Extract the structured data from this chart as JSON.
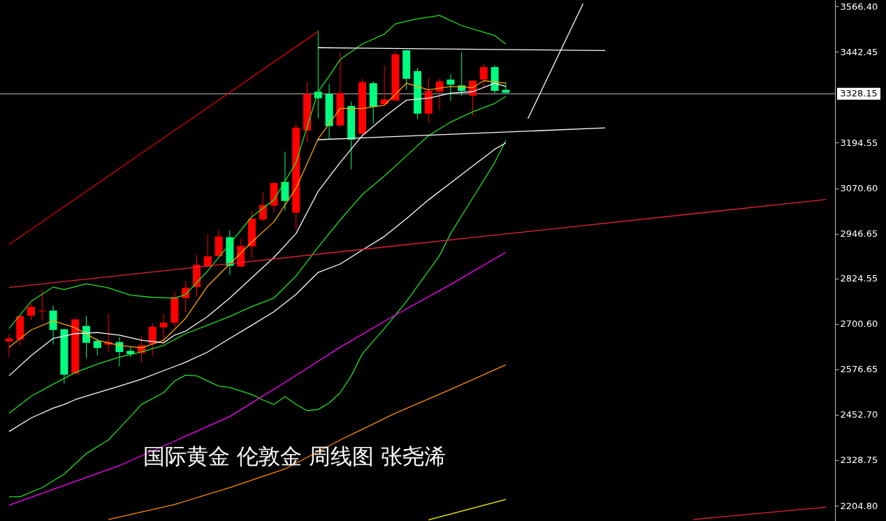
{
  "chart_data": {
    "type": "candlestick",
    "categories": [
      null,
      null,
      null,
      null,
      null,
      null,
      null,
      null,
      null,
      null,
      null,
      null,
      null,
      null,
      null,
      null,
      null,
      null,
      null,
      null,
      null,
      null,
      null,
      null,
      null,
      null,
      null,
      null,
      null,
      null,
      null,
      null,
      null,
      null,
      null,
      null,
      null,
      null,
      null,
      null,
      null,
      null,
      null,
      null,
      null,
      null,
      null,
      null,
      null,
      null,
      null,
      null,
      null,
      null,
      null,
      null,
      null,
      null,
      null,
      null,
      null,
      null,
      null,
      null,
      null,
      null,
      null,
      null,
      null,
      null,
      null,
      null,
      null,
      null,
      null
    ],
    "ohlc": [
      [
        2653,
        2674,
        2610,
        2661
      ],
      [
        2658,
        2722,
        2642,
        2722
      ],
      [
        2723,
        2757,
        2711,
        2747
      ],
      [
        2735,
        2793,
        2709,
        2737
      ],
      [
        2737,
        2750,
        2644,
        2684
      ],
      [
        2686,
        2686,
        2538,
        2562
      ],
      [
        2565,
        2713,
        2565,
        2713
      ],
      [
        2695,
        2722,
        2607,
        2649
      ],
      [
        2654,
        2661,
        2614,
        2635
      ],
      [
        2644,
        2728,
        2624,
        2651
      ],
      [
        2651,
        2665,
        2585,
        2624
      ],
      [
        2627,
        2637,
        2610,
        2618
      ],
      [
        2621,
        2667,
        2596,
        2642
      ],
      [
        2647,
        2702,
        2614,
        2693
      ],
      [
        2691,
        2727,
        2651,
        2704
      ],
      [
        2704,
        2788,
        2693,
        2774
      ],
      [
        2771,
        2817,
        2732,
        2799
      ],
      [
        2801,
        2889,
        2775,
        2862
      ],
      [
        2857,
        2945,
        2857,
        2885
      ],
      [
        2885,
        2959,
        2880,
        2939
      ],
      [
        2937,
        2956,
        2834,
        2859
      ],
      [
        2857,
        2933,
        2857,
        2913
      ],
      [
        2912,
        3007,
        2880,
        2988
      ],
      [
        2985,
        3059,
        2982,
        3025
      ],
      [
        3023,
        3085,
        3004,
        3085
      ],
      [
        3088,
        3170,
        3010,
        3036
      ],
      [
        3004,
        3247,
        2958,
        3236
      ],
      [
        3228,
        3360,
        3196,
        3328
      ],
      [
        3334,
        3501,
        3261,
        3316
      ],
      [
        3327,
        3355,
        3203,
        3240
      ],
      [
        3242,
        3441,
        3237,
        3330
      ],
      [
        3295,
        3307,
        3122,
        3203
      ],
      [
        3219,
        3369,
        3214,
        3360
      ],
      [
        3357,
        3362,
        3247,
        3293
      ],
      [
        3300,
        3405,
        3297,
        3313
      ],
      [
        3310,
        3445,
        3307,
        3436
      ],
      [
        3447,
        3447,
        3339,
        3369
      ],
      [
        3390,
        3399,
        3259,
        3274
      ],
      [
        3274,
        3371,
        3249,
        3336
      ],
      [
        3334,
        3369,
        3284,
        3362
      ],
      [
        3367,
        3381,
        3309,
        3353
      ],
      [
        3351,
        3441,
        3323,
        3336
      ],
      [
        3323,
        3364,
        3268,
        3364
      ],
      [
        3367,
        3411,
        3345,
        3401
      ],
      [
        3401,
        3406,
        3330,
        3336
      ],
      [
        3339,
        3360,
        3330,
        3331
      ],
      null,
      null,
      null,
      null,
      null,
      null,
      null,
      null,
      null,
      null,
      null,
      null,
      null,
      null,
      null,
      null,
      null,
      null,
      null,
      null,
      null,
      null,
      null,
      null,
      null,
      null,
      null,
      null,
      null
    ],
    "colors": [
      "#ff0000",
      "#ff0000",
      "#ff0000",
      "#ff0000",
      "#00ff80",
      "#00ff80",
      "#ff0000",
      "#00ff80",
      "#00ff80",
      "#ff0000",
      "#00ff80",
      "#00ff80",
      "#ff0000",
      "#ff0000",
      "#ff0000",
      "#ff0000",
      "#ff0000",
      "#ff0000",
      "#ff0000",
      "#ff0000",
      "#00ff80",
      "#ff0000",
      "#ff0000",
      "#ff0000",
      "#ff0000",
      "#00ff80",
      "#ff0000",
      "#ff0000",
      "#00ff80",
      "#00ff80",
      "#ff0000",
      "#00ff80",
      "#ff0000",
      "#00ff80",
      "#ff0000",
      "#ff0000",
      "#00ff80",
      "#00ff80",
      "#ff0000",
      "#ff0000",
      "#00ff80",
      "#00ff80",
      "#ff0000",
      "#ff0000",
      "#00ff80",
      "#00ff80",
      null,
      null,
      null,
      null,
      null,
      null,
      null,
      null,
      null,
      null,
      null,
      null,
      null,
      null,
      null,
      null,
      null,
      null,
      null,
      null,
      null,
      null,
      null,
      null,
      null,
      null,
      null,
      null,
      null
    ],
    "series": [
      {
        "type": "line",
        "color": "#ffa500",
        "values": [
          2637,
          null,
          2684,
          null,
          2709,
          null,
          2690,
          null,
          2656,
          null,
          2642,
          null,
          2635,
          null,
          2656,
          null,
          2716,
          null,
          2804,
          null,
          2864,
          null,
          2924,
          null,
          2979,
          null,
          3071,
          null,
          3205,
          null,
          3288,
          null,
          3288,
          null,
          3297,
          null,
          3357,
          null,
          3339,
          null,
          3348,
          null,
          3345,
          3364,
          null,
          3357,
          null,
          null,
          null,
          null,
          null,
          null,
          null,
          null,
          null,
          null,
          null,
          null,
          null,
          null,
          null,
          null,
          null,
          null,
          null,
          null,
          null,
          null,
          null,
          null,
          null,
          null,
          null,
          null,
          null
        ]
      },
      {
        "type": "line",
        "color": "#ffffff",
        "values": [
          2559,
          null,
          2614,
          null,
          2661,
          null,
          2674,
          null,
          2677,
          null,
          2670,
          null,
          2656,
          null,
          2649,
          2670,
          2681,
          null,
          2721,
          null,
          2771,
          null,
          2827,
          null,
          2882,
          null,
          2947,
          null,
          3062,
          null,
          3141,
          null,
          3214,
          null,
          3265,
          null,
          3311,
          null,
          3316,
          null,
          3330,
          null,
          3334,
          null,
          3357,
          3348,
          null,
          null,
          null,
          null,
          null,
          null,
          null,
          null,
          null,
          null,
          null,
          null,
          null,
          null,
          null,
          null,
          null,
          null,
          null,
          null,
          null,
          null,
          null,
          null,
          null,
          null,
          null,
          null,
          null
        ]
      },
      {
        "type": "line",
        "color": "#22e022",
        "values": [
          2688,
          null,
          2762,
          null,
          2801,
          2794,
          null,
          2810,
          null,
          2799,
          null,
          2779,
          null,
          2773,
          null,
          2771,
          2781,
          null,
          2845,
          null,
          2919,
          null,
          2993,
          null,
          3039,
          null,
          3141,
          null,
          3334,
          3376,
          3422,
          null,
          3464,
          null,
          3491,
          3519,
          null,
          3533,
          null,
          3542,
          null,
          3514,
          null,
          3496,
          3487,
          3464,
          null,
          null,
          null,
          null,
          null,
          null,
          null,
          null,
          null,
          null,
          null,
          null,
          null,
          null,
          null,
          null,
          null,
          null,
          null,
          null,
          null,
          null,
          null,
          null,
          null,
          null,
          null,
          null,
          null
        ]
      },
      {
        "type": "line",
        "color": "#22e022",
        "values": [
          2457,
          null,
          2503,
          null,
          2536,
          null,
          2568,
          null,
          2591,
          null,
          2610,
          null,
          2624,
          null,
          2642,
          null,
          2674,
          null,
          2697,
          null,
          2721,
          null,
          2748,
          null,
          2771,
          null,
          2831,
          null,
          2910,
          null,
          2984,
          null,
          3053,
          null,
          3104,
          null,
          3159,
          null,
          3214,
          null,
          3251,
          null,
          3279,
          null,
          3302,
          3321,
          null,
          null,
          null,
          null,
          null,
          null,
          null,
          null,
          null,
          null,
          null,
          null,
          null,
          null,
          null,
          null,
          null,
          null,
          null,
          null,
          null,
          null,
          null,
          null,
          null,
          null,
          null,
          null,
          null
        ]
      },
      {
        "type": "line",
        "color": "#22e022",
        "values": [
          2229,
          2229,
          null,
          2254,
          null,
          2291,
          null,
          2347,
          null,
          2384,
          2416,
          2448,
          2481,
          null,
          2513,
          2545,
          2561,
          2559,
          null,
          2531,
          2527,
          null,
          2508,
          2493,
          2481,
          2502,
          2481,
          2464,
          2467,
          2485,
          2513,
          2559,
          2619,
          null,
          2688,
          null,
          2762,
          null,
          2845,
          2887,
          2947,
          null,
          3044,
          null,
          3141,
          3201,
          null,
          null,
          null,
          null,
          null,
          null,
          null,
          null,
          null,
          null,
          null,
          null,
          null,
          null,
          null,
          null,
          null,
          null,
          null,
          null,
          null,
          null,
          null,
          null,
          null,
          null,
          null,
          null,
          null
        ]
      },
      {
        "type": "line",
        "color": "#ffffff",
        "values": [
          2407,
          null,
          2444,
          null,
          2471,
          2481,
          2494,
          null,
          2513,
          null,
          2531,
          null,
          2550,
          null,
          2573,
          null,
          2596,
          null,
          2624,
          null,
          2661,
          null,
          2697,
          null,
          2734,
          null,
          2781,
          null,
          2841,
          null,
          2864,
          null,
          2902,
          null,
          2939,
          null,
          2988,
          null,
          3039,
          null,
          3085,
          null,
          3131,
          null,
          3177,
          3194,
          null,
          null,
          null,
          null,
          null,
          null,
          null,
          null,
          null,
          null,
          null,
          null,
          null,
          null,
          null,
          null,
          null,
          null,
          null,
          null,
          null,
          null,
          null,
          null,
          null,
          null,
          null,
          null,
          null
        ]
      },
      {
        "type": "line",
        "color": "#ff00ff",
        "values": [
          2206,
          null,
          null,
          null,
          null,
          null,
          null,
          null,
          null,
          null,
          2314,
          null,
          null,
          null,
          null,
          null,
          null,
          null,
          null,
          null,
          2448,
          null,
          null,
          null,
          null,
          2541,
          null,
          null,
          null,
          null,
          2637,
          null,
          null,
          null,
          null,
          2725,
          null,
          null,
          null,
          null,
          2808,
          null,
          null,
          null,
          null,
          2896,
          null,
          null,
          null,
          null,
          null,
          null,
          null,
          null,
          null,
          null,
          null,
          null,
          null,
          null,
          null,
          null,
          null,
          null,
          null,
          null,
          null,
          null,
          null,
          null,
          null,
          null,
          null,
          null,
          null
        ]
      },
      {
        "type": "line",
        "color": "#ff8c00",
        "values": [
          null,
          null,
          null,
          null,
          null,
          null,
          null,
          null,
          null,
          2167,
          null,
          null,
          null,
          null,
          null,
          2208,
          null,
          null,
          null,
          null,
          2254,
          null,
          null,
          null,
          null,
          2305,
          null,
          null,
          null,
          null,
          2384,
          null,
          null,
          null,
          null,
          2457,
          null,
          null,
          null,
          null,
          2522,
          null,
          null,
          null,
          null,
          2589,
          null,
          null,
          null,
          null,
          null,
          null,
          null,
          null,
          null,
          null,
          null,
          null,
          null,
          null,
          null,
          null,
          null,
          null,
          null,
          null,
          null,
          null,
          null,
          null,
          null,
          null,
          null,
          null,
          null
        ]
      },
      {
        "type": "line",
        "color": "#ffff00",
        "values": [
          null,
          null,
          null,
          null,
          null,
          null,
          null,
          null,
          null,
          null,
          null,
          null,
          null,
          null,
          null,
          null,
          null,
          null,
          null,
          null,
          null,
          null,
          null,
          null,
          null,
          null,
          null,
          null,
          null,
          null,
          null,
          null,
          null,
          null,
          null,
          null,
          null,
          null,
          2166,
          null,
          null,
          2190,
          null,
          null,
          null,
          2222,
          null,
          null,
          null,
          null,
          null,
          null,
          null,
          null,
          null,
          null,
          null,
          null,
          null,
          null,
          null,
          null,
          null,
          null,
          null,
          null,
          null,
          null,
          null,
          null,
          null,
          null,
          null,
          null,
          null
        ]
      },
      {
        "type": "line",
        "color": "#e00000",
        "values": [
          2917,
          null,
          null,
          null,
          null,
          null,
          null,
          null,
          null,
          null,
          null,
          null,
          null,
          null,
          null,
          null,
          null,
          null,
          null,
          null,
          null,
          null,
          null,
          null,
          null,
          null,
          null,
          null,
          3498,
          null,
          null,
          null,
          null,
          null,
          null,
          null,
          null,
          null,
          null,
          null,
          null,
          null,
          null,
          null,
          null,
          null,
          null,
          null,
          null,
          null,
          null,
          null,
          null,
          null,
          null,
          null,
          null,
          null,
          null,
          null,
          null,
          null,
          null,
          null,
          null,
          null,
          null,
          null,
          null,
          null,
          null,
          null,
          null,
          null,
          null
        ]
      },
      {
        "type": "line",
        "color": "#e8203c",
        "values": [
          2800,
          null,
          null,
          null,
          null,
          null,
          null,
          null,
          null,
          null,
          null,
          null,
          null,
          null,
          null,
          null,
          null,
          null,
          null,
          null,
          null,
          null,
          null,
          null,
          null,
          null,
          null,
          null,
          null,
          null,
          null,
          null,
          null,
          null,
          null,
          null,
          null,
          null,
          null,
          null,
          null,
          null,
          null,
          null,
          null,
          null,
          null,
          null,
          null,
          null,
          null,
          null,
          null,
          null,
          null,
          null,
          null,
          null,
          null,
          null,
          null,
          null,
          null,
          null,
          null,
          null,
          null,
          null,
          null,
          null,
          null,
          null,
          null,
          null,
          3040
        ]
      },
      {
        "type": "line",
        "color": "#e8203c",
        "values": [
          null,
          null,
          null,
          null,
          null,
          null,
          null,
          null,
          null,
          null,
          null,
          null,
          null,
          null,
          null,
          null,
          null,
          null,
          null,
          null,
          null,
          null,
          null,
          null,
          null,
          null,
          null,
          null,
          null,
          null,
          null,
          null,
          null,
          null,
          null,
          null,
          null,
          null,
          null,
          null,
          null,
          null,
          null,
          null,
          null,
          null,
          null,
          null,
          null,
          null,
          null,
          null,
          null,
          null,
          null,
          null,
          null,
          null,
          null,
          null,
          null,
          null,
          2167,
          null,
          null,
          null,
          null,
          null,
          null,
          null,
          null,
          null,
          null,
          null,
          2201
        ]
      },
      {
        "type": "line",
        "color": "#ffffff",
        "values": [
          null,
          null,
          null,
          null,
          null,
          null,
          null,
          null,
          null,
          null,
          null,
          null,
          null,
          null,
          null,
          null,
          null,
          null,
          null,
          null,
          null,
          null,
          null,
          null,
          null,
          null,
          null,
          null,
          3454,
          null,
          null,
          null,
          null,
          null,
          null,
          null,
          null,
          null,
          null,
          null,
          null,
          null,
          null,
          null,
          null,
          null,
          null,
          null,
          null,
          null,
          null,
          null,
          null,
          null,
          3446,
          null,
          null,
          null,
          null,
          null,
          null,
          null,
          null,
          null,
          null,
          null,
          null,
          null,
          null,
          null,
          null,
          null,
          null,
          null,
          null
        ]
      },
      {
        "type": "line",
        "color": "#ffffff",
        "values": [
          null,
          null,
          null,
          null,
          null,
          null,
          null,
          null,
          null,
          null,
          null,
          null,
          null,
          null,
          null,
          null,
          null,
          null,
          null,
          null,
          null,
          null,
          null,
          null,
          null,
          null,
          null,
          null,
          3203,
          null,
          null,
          null,
          null,
          null,
          null,
          null,
          null,
          null,
          null,
          null,
          null,
          null,
          null,
          null,
          null,
          null,
          null,
          null,
          null,
          null,
          null,
          null,
          null,
          null,
          3235,
          null,
          null,
          null,
          null,
          null,
          null,
          null,
          null,
          null,
          null,
          null,
          null,
          null,
          null,
          null,
          null,
          null,
          null,
          null,
          null
        ]
      },
      {
        "type": "line",
        "color": "#ffffff",
        "values": [
          null,
          null,
          null,
          null,
          null,
          null,
          null,
          null,
          null,
          null,
          null,
          null,
          null,
          null,
          null,
          null,
          null,
          null,
          null,
          null,
          null,
          null,
          null,
          null,
          null,
          null,
          null,
          null,
          null,
          null,
          null,
          null,
          null,
          null,
          null,
          null,
          null,
          null,
          null,
          null,
          null,
          null,
          null,
          null,
          null,
          null,
          null,
          3260,
          null,
          null,
          null,
          null,
          3574,
          null,
          null,
          null,
          null,
          null,
          null,
          null,
          null,
          null,
          null,
          null,
          null,
          null,
          null,
          null,
          null,
          null,
          null,
          null,
          null,
          null,
          null
        ]
      }
    ],
    "ylim": [
      2163,
      3584
    ],
    "yticks": [
      {
        "value": 2204.8,
        "label": "2204.80"
      },
      {
        "value": 2328.75,
        "label": "2328.75"
      },
      {
        "value": 2452.7,
        "label": "2452.70"
      },
      {
        "value": 2576.65,
        "label": "2576.65"
      },
      {
        "value": 2700.6,
        "label": "2700.60"
      },
      {
        "value": 2824.55,
        "label": "2824.55"
      },
      {
        "value": 2946.65,
        "label": "2946.65"
      },
      {
        "value": 3070.6,
        "label": "3070.60"
      },
      {
        "value": 3194.55,
        "label": "3194.55"
      },
      {
        "value": 3442.45,
        "label": "3442.45"
      },
      {
        "value": 3566.4,
        "label": "3566.40"
      }
    ],
    "ref_lines": [
      {
        "axis": "y",
        "value": 3328.15,
        "label": "3328.15",
        "color": "#c0c0c0"
      }
    ],
    "annotations": [
      "国际黄金 伦敦金 周线图  张尧浠"
    ],
    "tick_labels": "y",
    "grid": false
  }
}
